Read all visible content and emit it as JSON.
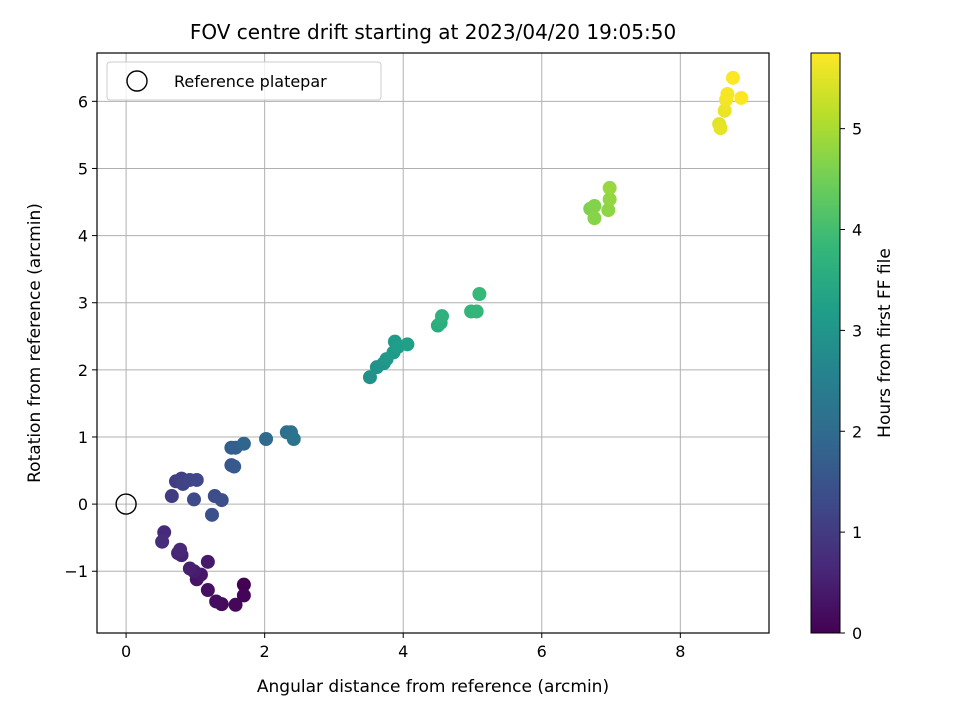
{
  "chart_data": {
    "type": "scatter",
    "title": "FOV centre drift starting at 2023/04/20 19:05:50",
    "xlabel": "Angular distance from reference (arcmin)",
    "ylabel": "Rotation from reference (arcmin)",
    "xlim": [
      -0.42,
      9.28
    ],
    "ylim": [
      -1.92,
      6.72
    ],
    "xticks": [
      0,
      2,
      4,
      6,
      8
    ],
    "yticks": [
      -1,
      0,
      1,
      2,
      3,
      4,
      5,
      6
    ],
    "xtick_labels": [
      "0",
      "2",
      "4",
      "6",
      "8"
    ],
    "ytick_labels": [
      "−1",
      "0",
      "1",
      "2",
      "3",
      "4",
      "5",
      "6"
    ],
    "grid": true,
    "legend": {
      "placement": "top-left",
      "entries": [
        {
          "label": "Reference platepar",
          "marker": "open-circle"
        }
      ]
    },
    "reference_point": {
      "x": 0,
      "y": 0
    },
    "colorbar": {
      "label": "Hours from first FF file",
      "range": [
        0,
        5.75
      ],
      "ticks": [
        0,
        1,
        2,
        3,
        4,
        5
      ],
      "tick_labels": [
        "0",
        "1",
        "2",
        "3",
        "4",
        "5"
      ],
      "colormap": "viridis"
    },
    "colormap_stops": [
      "#440154",
      "#482878",
      "#3e4989",
      "#31688e",
      "#26828e",
      "#1f9e89",
      "#35b779",
      "#6ece58",
      "#b5de2b",
      "#fde725"
    ],
    "points": [
      {
        "x": 1.7,
        "y": -1.2,
        "t": 0.0
      },
      {
        "x": 1.7,
        "y": -1.36,
        "t": 0.05
      },
      {
        "x": 1.58,
        "y": -1.5,
        "t": 0.1
      },
      {
        "x": 1.38,
        "y": -1.49,
        "t": 0.15
      },
      {
        "x": 1.3,
        "y": -1.45,
        "t": 0.2
      },
      {
        "x": 1.18,
        "y": -1.28,
        "t": 0.25
      },
      {
        "x": 1.02,
        "y": -1.12,
        "t": 0.3
      },
      {
        "x": 1.08,
        "y": -1.05,
        "t": 0.35
      },
      {
        "x": 1.18,
        "y": -0.86,
        "t": 0.4
      },
      {
        "x": 0.98,
        "y": -1.0,
        "t": 0.45
      },
      {
        "x": 0.92,
        "y": -0.96,
        "t": 0.5
      },
      {
        "x": 0.8,
        "y": -0.76,
        "t": 0.55
      },
      {
        "x": 0.75,
        "y": -0.73,
        "t": 0.6
      },
      {
        "x": 0.78,
        "y": -0.68,
        "t": 0.65
      },
      {
        "x": 0.55,
        "y": -0.42,
        "t": 0.7
      },
      {
        "x": 0.52,
        "y": -0.56,
        "t": 0.75
      },
      {
        "x": 0.66,
        "y": 0.12,
        "t": 1.0
      },
      {
        "x": 0.72,
        "y": 0.34,
        "t": 1.05
      },
      {
        "x": 0.8,
        "y": 0.38,
        "t": 1.1
      },
      {
        "x": 0.82,
        "y": 0.3,
        "t": 1.15
      },
      {
        "x": 0.92,
        "y": 0.36,
        "t": 1.2
      },
      {
        "x": 1.02,
        "y": 0.36,
        "t": 1.25
      },
      {
        "x": 0.98,
        "y": 0.07,
        "t": 1.3
      },
      {
        "x": 1.28,
        "y": 0.12,
        "t": 1.35
      },
      {
        "x": 1.38,
        "y": 0.06,
        "t": 1.4
      },
      {
        "x": 1.24,
        "y": -0.16,
        "t": 1.45
      },
      {
        "x": 1.52,
        "y": 0.58,
        "t": 1.55
      },
      {
        "x": 1.56,
        "y": 0.56,
        "t": 1.6
      },
      {
        "x": 1.52,
        "y": 0.84,
        "t": 1.7
      },
      {
        "x": 1.58,
        "y": 0.84,
        "t": 1.75
      },
      {
        "x": 1.7,
        "y": 0.9,
        "t": 1.85
      },
      {
        "x": 2.02,
        "y": 0.97,
        "t": 2.0
      },
      {
        "x": 2.32,
        "y": 1.07,
        "t": 2.1
      },
      {
        "x": 2.38,
        "y": 1.07,
        "t": 2.15
      },
      {
        "x": 2.42,
        "y": 0.97,
        "t": 2.2
      },
      {
        "x": 3.52,
        "y": 1.89,
        "t": 2.9
      },
      {
        "x": 3.62,
        "y": 2.04,
        "t": 2.95
      },
      {
        "x": 3.72,
        "y": 2.1,
        "t": 3.0
      },
      {
        "x": 3.76,
        "y": 2.16,
        "t": 3.05
      },
      {
        "x": 3.86,
        "y": 2.26,
        "t": 3.1
      },
      {
        "x": 3.88,
        "y": 2.42,
        "t": 3.15
      },
      {
        "x": 3.92,
        "y": 2.34,
        "t": 3.2
      },
      {
        "x": 4.06,
        "y": 2.38,
        "t": 3.25
      },
      {
        "x": 4.5,
        "y": 2.66,
        "t": 3.55
      },
      {
        "x": 4.54,
        "y": 2.7,
        "t": 3.6
      },
      {
        "x": 4.56,
        "y": 2.8,
        "t": 3.65
      },
      {
        "x": 4.98,
        "y": 2.87,
        "t": 3.75
      },
      {
        "x": 5.06,
        "y": 2.87,
        "t": 3.8
      },
      {
        "x": 5.1,
        "y": 3.13,
        "t": 3.85
      },
      {
        "x": 6.7,
        "y": 4.4,
        "t": 4.6
      },
      {
        "x": 6.76,
        "y": 4.44,
        "t": 4.65
      },
      {
        "x": 6.76,
        "y": 4.26,
        "t": 4.7
      },
      {
        "x": 6.96,
        "y": 4.38,
        "t": 4.75
      },
      {
        "x": 6.98,
        "y": 4.54,
        "t": 4.8
      },
      {
        "x": 6.98,
        "y": 4.71,
        "t": 4.85
      },
      {
        "x": 8.56,
        "y": 5.66,
        "t": 5.5
      },
      {
        "x": 8.58,
        "y": 5.6,
        "t": 5.55
      },
      {
        "x": 8.64,
        "y": 5.86,
        "t": 5.6
      },
      {
        "x": 8.66,
        "y": 6.02,
        "t": 5.65
      },
      {
        "x": 8.68,
        "y": 6.11,
        "t": 5.68
      },
      {
        "x": 8.76,
        "y": 6.35,
        "t": 5.72
      },
      {
        "x": 8.88,
        "y": 6.05,
        "t": 5.75
      }
    ]
  }
}
